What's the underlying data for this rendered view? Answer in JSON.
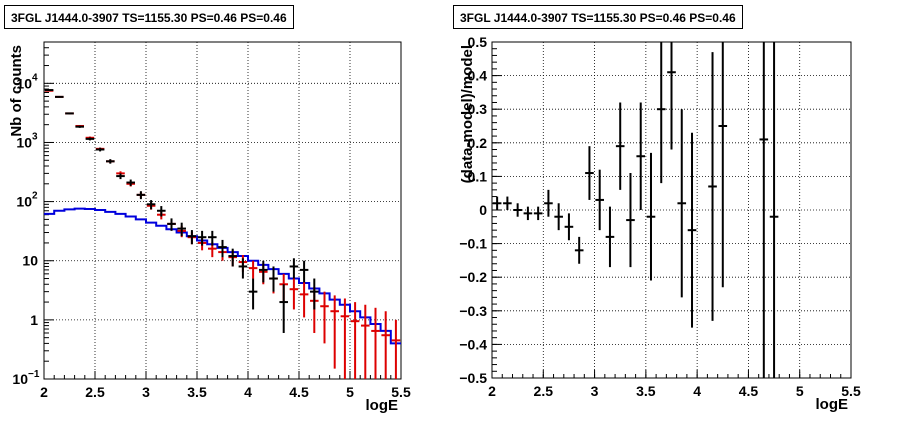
{
  "chart_data": [
    {
      "type": "scatter",
      "title": "3FGL J1444.0-3907 TS=1155.30 PS=0.46 PS=0.46",
      "xlabel": "logE",
      "ylabel": "Nb of counts",
      "xlim": [
        2,
        5.5
      ],
      "ylim": [
        0.1,
        50000
      ],
      "yscale": "log",
      "grid": true,
      "x_ticks": [
        "2",
        "2.5",
        "3",
        "3.5",
        "4",
        "4.5",
        "5",
        "5.5"
      ],
      "y_tick_values": [
        0.1,
        1,
        10,
        100,
        1000,
        10000
      ],
      "series": [
        {
          "color": "#000000",
          "style": "crosses",
          "points": [
            {
              "x": 2.05,
              "y": 7700,
              "lo": 7530,
              "hi": 7870
            },
            {
              "x": 2.15,
              "y": 5900,
              "lo": 5750,
              "hi": 6050
            },
            {
              "x": 2.25,
              "y": 3100,
              "lo": 2990,
              "hi": 3210
            },
            {
              "x": 2.35,
              "y": 1850,
              "lo": 1765,
              "hi": 1935
            },
            {
              "x": 2.45,
              "y": 1150,
              "lo": 1083,
              "hi": 1217
            },
            {
              "x": 2.55,
              "y": 760,
              "lo": 706,
              "hi": 814
            },
            {
              "x": 2.65,
              "y": 480,
              "lo": 438,
              "hi": 522
            },
            {
              "x": 2.75,
              "y": 270,
              "lo": 240,
              "hi": 300
            },
            {
              "x": 2.85,
              "y": 210,
              "lo": 184,
              "hi": 236
            },
            {
              "x": 2.95,
              "y": 130,
              "lo": 110,
              "hi": 150
            },
            {
              "x": 3.05,
              "y": 90,
              "lo": 74,
              "hi": 106
            },
            {
              "x": 3.15,
              "y": 70,
              "lo": 56,
              "hi": 84
            },
            {
              "x": 3.25,
              "y": 42,
              "lo": 32,
              "hi": 52
            },
            {
              "x": 3.35,
              "y": 35,
              "lo": 26,
              "hi": 44
            },
            {
              "x": 3.45,
              "y": 26,
              "lo": 19,
              "hi": 33
            },
            {
              "x": 3.55,
              "y": 25,
              "lo": 18,
              "hi": 32
            },
            {
              "x": 3.65,
              "y": 25,
              "lo": 18,
              "hi": 32
            },
            {
              "x": 3.75,
              "y": 17,
              "lo": 11.5,
              "hi": 22.5
            },
            {
              "x": 3.85,
              "y": 12,
              "lo": 8,
              "hi": 16
            },
            {
              "x": 3.95,
              "y": 8,
              "lo": 5,
              "hi": 11
            },
            {
              "x": 4.05,
              "y": 3,
              "lo": 1.5,
              "hi": 5
            },
            {
              "x": 4.15,
              "y": 7,
              "lo": 4.3,
              "hi": 10
            },
            {
              "x": 4.25,
              "y": 5,
              "lo": 3,
              "hi": 8
            },
            {
              "x": 4.35,
              "y": 2,
              "lo": 0.6,
              "hi": 4
            },
            {
              "x": 4.45,
              "y": 8,
              "lo": 5,
              "hi": 11
            },
            {
              "x": 4.55,
              "y": 7,
              "lo": 4.3,
              "hi": 10
            },
            {
              "x": 4.65,
              "y": 3,
              "lo": 1.5,
              "hi": 5
            }
          ]
        },
        {
          "color": "#dd0000",
          "style": "model-crosses",
          "points": [
            {
              "x": 2.05,
              "y": 7500,
              "lo": 7350,
              "hi": 7650
            },
            {
              "x": 2.15,
              "y": 5900,
              "lo": 5780,
              "hi": 6020
            },
            {
              "x": 2.25,
              "y": 3100,
              "lo": 3000,
              "hi": 3200
            },
            {
              "x": 2.35,
              "y": 1900,
              "lo": 1830,
              "hi": 1970
            },
            {
              "x": 2.45,
              "y": 1200,
              "lo": 1140,
              "hi": 1260
            },
            {
              "x": 2.55,
              "y": 780,
              "lo": 740,
              "hi": 820
            },
            {
              "x": 2.65,
              "y": 480,
              "lo": 450,
              "hi": 510
            },
            {
              "x": 2.75,
              "y": 300,
              "lo": 275,
              "hi": 325
            },
            {
              "x": 2.85,
              "y": 200,
              "lo": 180,
              "hi": 220
            },
            {
              "x": 2.95,
              "y": 130,
              "lo": 115,
              "hi": 145
            },
            {
              "x": 3.05,
              "y": 85,
              "lo": 73,
              "hi": 97
            },
            {
              "x": 3.15,
              "y": 60,
              "lo": 50,
              "hi": 70
            },
            {
              "x": 3.25,
              "y": 42,
              "lo": 33,
              "hi": 51
            },
            {
              "x": 3.35,
              "y": 32,
              "lo": 25,
              "hi": 39
            },
            {
              "x": 3.45,
              "y": 25,
              "lo": 19,
              "hi": 31
            },
            {
              "x": 3.55,
              "y": 20,
              "lo": 15,
              "hi": 25
            },
            {
              "x": 3.65,
              "y": 16,
              "lo": 11.5,
              "hi": 20.5
            },
            {
              "x": 3.75,
              "y": 14,
              "lo": 10,
              "hi": 18
            },
            {
              "x": 3.85,
              "y": 11.5,
              "lo": 8,
              "hi": 15
            },
            {
              "x": 3.95,
              "y": 9.5,
              "lo": 6.5,
              "hi": 12.5
            },
            {
              "x": 4.05,
              "y": 7.5,
              "lo": 5,
              "hi": 10
            },
            {
              "x": 4.15,
              "y": 6.5,
              "lo": 4,
              "hi": 9
            },
            {
              "x": 4.25,
              "y": 5,
              "lo": 2.8,
              "hi": 7.2
            },
            {
              "x": 4.35,
              "y": 4,
              "lo": 2,
              "hi": 6
            },
            {
              "x": 4.45,
              "y": 3.3,
              "lo": 1.5,
              "hi": 5.2
            },
            {
              "x": 4.55,
              "y": 2.7,
              "lo": 1.1,
              "hi": 4.4
            },
            {
              "x": 4.65,
              "y": 2.1,
              "lo": 0.6,
              "hi": 3.6
            },
            {
              "x": 4.75,
              "y": 1.7,
              "lo": 0.4,
              "hi": 3
            },
            {
              "x": 4.85,
              "y": 1.4,
              "lo": 0.15,
              "hi": 2.6
            },
            {
              "x": 4.95,
              "y": 1.15,
              "lo": 0.1,
              "hi": 2.3
            },
            {
              "x": 5.05,
              "y": 0.95,
              "lo": 0.1,
              "hi": 2
            },
            {
              "x": 5.15,
              "y": 0.8,
              "lo": 0.1,
              "hi": 1.8
            },
            {
              "x": 5.25,
              "y": 0.65,
              "lo": 0.1,
              "hi": 1.6
            },
            {
              "x": 5.35,
              "y": 0.55,
              "lo": 0.1,
              "hi": 1.4
            },
            {
              "x": 5.45,
              "y": 0.45,
              "lo": 0.1,
              "hi": 1
            }
          ]
        },
        {
          "color": "#0000dd",
          "style": "step",
          "bin_edges": [
            2,
            2.1,
            2.2,
            2.3,
            2.4,
            2.5,
            2.6,
            2.7,
            2.8,
            2.9,
            3,
            3.1,
            3.2,
            3.3,
            3.4,
            3.5,
            3.6,
            3.7,
            3.8,
            3.9,
            4,
            4.1,
            4.2,
            4.3,
            4.4,
            4.5,
            4.6,
            4.7,
            4.8,
            4.9,
            5,
            5.1,
            5.2,
            5.3,
            5.4,
            5.5
          ],
          "values": [
            62,
            70,
            74,
            76,
            75,
            72,
            67,
            62,
            56,
            50,
            44,
            39,
            34,
            30,
            26,
            22,
            19,
            16.5,
            14,
            12,
            10,
            8.5,
            7.2,
            6,
            5,
            4.2,
            3.4,
            2.8,
            2.2,
            1.8,
            1.4,
            1.1,
            0.85,
            0.65,
            0.4
          ]
        }
      ]
    },
    {
      "type": "scatter",
      "title": "3FGL J1444.0-3907 TS=1155.30 PS=0.46 PS=0.46",
      "xlabel": "logE",
      "ylabel": "(data-model)/model",
      "xlim": [
        2,
        5.5
      ],
      "ylim": [
        -0.5,
        0.5
      ],
      "grid": true,
      "x_ticks": [
        "2",
        "2.5",
        "3",
        "3.5",
        "4",
        "4.5",
        "5",
        "5.5"
      ],
      "y_ticks": [
        "−0.5",
        "−0.4",
        "−0.3",
        "−0.2",
        "−0.1",
        "0",
        "0.1",
        "0.2",
        "0.3",
        "0.4",
        "0.5"
      ],
      "series": [
        {
          "color": "#000000",
          "style": "crosses",
          "points": [
            {
              "x": 2.05,
              "y": 0.02,
              "lo": 0.0,
              "hi": 0.04
            },
            {
              "x": 2.15,
              "y": 0.02,
              "lo": 0.0,
              "hi": 0.04
            },
            {
              "x": 2.25,
              "y": 0.0,
              "lo": -0.02,
              "hi": 0.02
            },
            {
              "x": 2.35,
              "y": -0.01,
              "lo": -0.03,
              "hi": 0.01
            },
            {
              "x": 2.45,
              "y": -0.01,
              "lo": -0.03,
              "hi": 0.01
            },
            {
              "x": 2.55,
              "y": 0.02,
              "lo": -0.02,
              "hi": 0.06
            },
            {
              "x": 2.65,
              "y": -0.02,
              "lo": -0.06,
              "hi": 0.02
            },
            {
              "x": 2.75,
              "y": -0.05,
              "lo": -0.09,
              "hi": -0.01
            },
            {
              "x": 2.85,
              "y": -0.12,
              "lo": -0.16,
              "hi": -0.08
            },
            {
              "x": 2.95,
              "y": 0.11,
              "lo": 0.03,
              "hi": 0.19
            },
            {
              "x": 3.05,
              "y": 0.03,
              "lo": -0.06,
              "hi": 0.12
            },
            {
              "x": 3.15,
              "y": -0.08,
              "lo": -0.17,
              "hi": 0.01
            },
            {
              "x": 3.25,
              "y": 0.19,
              "lo": 0.06,
              "hi": 0.32
            },
            {
              "x": 3.35,
              "y": -0.03,
              "lo": -0.17,
              "hi": 0.11
            },
            {
              "x": 3.45,
              "y": 0.16,
              "lo": 0.0,
              "hi": 0.32
            },
            {
              "x": 3.55,
              "y": -0.02,
              "lo": -0.21,
              "hi": 0.17
            },
            {
              "x": 3.65,
              "y": 0.3,
              "lo": 0.08,
              "hi": 0.52
            },
            {
              "x": 3.75,
              "y": 0.41,
              "lo": 0.18,
              "hi": 0.64
            },
            {
              "x": 3.85,
              "y": 0.02,
              "lo": -0.26,
              "hi": 0.3
            },
            {
              "x": 3.95,
              "y": -0.06,
              "lo": -0.35,
              "hi": 0.23
            },
            {
              "x": 4.15,
              "y": 0.07,
              "lo": -0.33,
              "hi": 0.47
            },
            {
              "x": 4.25,
              "y": 0.25,
              "lo": -0.23,
              "hi": 0.73
            },
            {
              "x": 4.65,
              "y": 0.21,
              "lo": -0.7,
              "hi": 1.1
            },
            {
              "x": 4.75,
              "y": -0.02,
              "lo": -0.9,
              "hi": 0.86
            }
          ]
        }
      ]
    }
  ]
}
